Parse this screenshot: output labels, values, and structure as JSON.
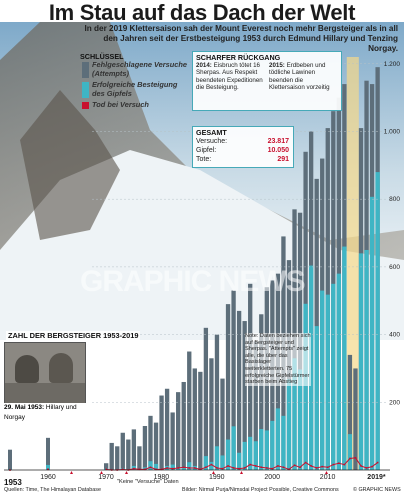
{
  "header": {
    "title": "Im Stau auf das Dach der Welt",
    "subtitle": "In der 2019 Klettersaison sah der Mount Everest noch mehr Bergsteiger als in all den Jahren seit der Erstbesteigung 1953 durch Edmund Hillary und Tenzing Norgay."
  },
  "legend": {
    "title": "SCHLÜSSEL",
    "attempts": "Fehlgeschlagene Versuche (Attempts)",
    "success": "Erfolgreiche Besteigung des Gipfels",
    "deaths": "Tod bei Versuch"
  },
  "decline": {
    "title": "SCHARFER RÜCKGANG",
    "text_2014_year": "2014:",
    "text_2014": "Eisbruch tötet 16 Sherpas. Aus Respekt beendeten Expeditionen die Besteigung.",
    "text_2015_year": "2015:",
    "text_2015": "Erdbeben und tödliche Lawinen beenden die Klettersaison vorzeitig"
  },
  "totals": {
    "title": "GESAMT",
    "attempts_label": "Versuche:",
    "attempts_value": "23.817",
    "summit_label": "Gipfel:",
    "summit_value": "10.050",
    "deaths_label": "Tote:",
    "deaths_value": "291"
  },
  "chart_title": "ZAHL DER BERGSTEIGER 1953-2019",
  "note": "Note: Daten beziehen sich auf Bergsteiger und Sherpas. \"Attempts\" zeigt alle, die über das Basislager weiterkletterten. 75 erfolgreiche Gipfelstürmer starben beim Abstieg",
  "photo_caption_date": "29. Mai 1953:",
  "photo_caption_text": "Hillary und Norgay",
  "watermark": "GRAPHIC NEWS",
  "footer": {
    "year_start": "1953",
    "no_attempts_note": "\"Keine \"Versuche\" Daten",
    "sources": "Quellen: Time, The Himalayan Database",
    "credits": "Bilder: Nirmal Purja/Nimsdai Project Possible, Creative Commons",
    "copyright": "© GRAPHIC NEWS"
  },
  "colors": {
    "attempts": "#5d6e7a",
    "success": "#3fb5c4",
    "deaths": "#c8102e",
    "highlight": "#f5d98a",
    "box_border": "#46a9b8",
    "accent_red": "#c8102e"
  },
  "chart_data": {
    "type": "bar",
    "title": "ZAHL DER BERGSTEIGER 1953-2019",
    "x_ticks": [
      "1960",
      "1970",
      "1980",
      "1990",
      "2000",
      "2010",
      "2019*"
    ],
    "y_ticks": [
      "200",
      "400",
      "600",
      "800",
      "1.000",
      "1.200"
    ],
    "ylim": [
      0,
      1220
    ],
    "groups": [
      {
        "label": "1953",
        "attempts": 60,
        "success": 2,
        "deaths": 0
      },
      {
        "label": "1960",
        "attempts": 95,
        "success": 15,
        "deaths": 1
      }
    ],
    "years": [
      1970,
      1971,
      1972,
      1973,
      1974,
      1975,
      1976,
      1977,
      1978,
      1979,
      1980,
      1981,
      1982,
      1983,
      1984,
      1985,
      1986,
      1987,
      1988,
      1989,
      1990,
      1991,
      1992,
      1993,
      1994,
      1995,
      1996,
      1997,
      1998,
      1999,
      2000,
      2001,
      2002,
      2003,
      2004,
      2005,
      2006,
      2007,
      2008,
      2009,
      2010,
      2011,
      2012,
      2013,
      2014,
      2015,
      2016,
      2017,
      2018,
      2019
    ],
    "attempts": [
      20,
      80,
      70,
      110,
      90,
      120,
      70,
      130,
      160,
      140,
      220,
      240,
      170,
      230,
      260,
      350,
      300,
      290,
      420,
      330,
      400,
      270,
      490,
      530,
      470,
      440,
      550,
      380,
      460,
      540,
      560,
      580,
      690,
      620,
      770,
      760,
      940,
      1000,
      860,
      920,
      1010,
      1060,
      1100,
      1140,
      340,
      300,
      1010,
      1150,
      1140,
      1190
    ],
    "success": [
      4,
      0,
      0,
      5,
      0,
      12,
      2,
      8,
      26,
      18,
      4,
      12,
      16,
      7,
      9,
      23,
      12,
      3,
      41,
      24,
      70,
      43,
      90,
      129,
      51,
      83,
      98,
      85,
      121,
      117,
      145,
      182,
      160,
      268,
      330,
      297,
      491,
      604,
      425,
      530,
      518,
      550,
      580,
      660,
      106,
      0,
      640,
      650,
      807,
      880
    ],
    "deaths": [
      1,
      0,
      0,
      1,
      0,
      2,
      1,
      1,
      4,
      1,
      1,
      3,
      2,
      3,
      4,
      3,
      3,
      1,
      4,
      8,
      3,
      2,
      6,
      3,
      2,
      3,
      8,
      6,
      4,
      3,
      2,
      6,
      4,
      1,
      7,
      4,
      11,
      6,
      3,
      5,
      4,
      8,
      10,
      8,
      17,
      18,
      6,
      3,
      5,
      11
    ],
    "highlight_years": [
      2014,
      2015
    ]
  }
}
